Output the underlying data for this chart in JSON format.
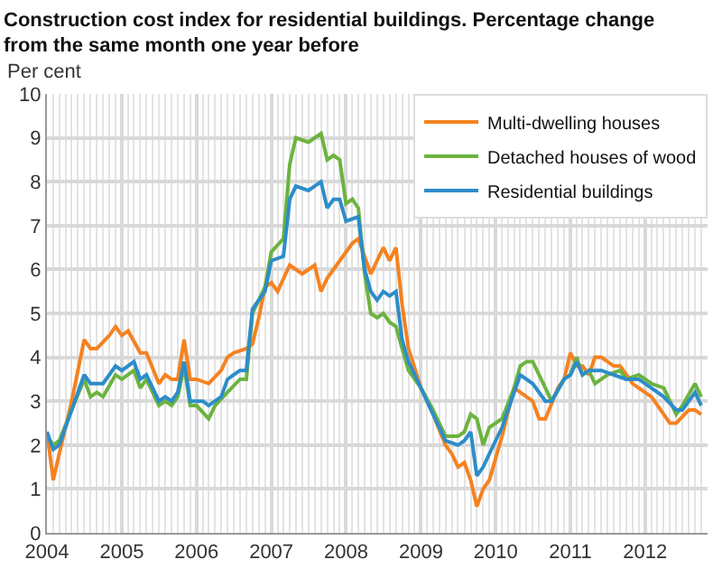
{
  "chart_data": {
    "type": "line",
    "title": "Construction cost index for residential buildings. Percentage change\nfrom the same month one year before",
    "ylabel": "Per cent",
    "xlim": [
      "2004-01",
      "2012-11"
    ],
    "xticks": [
      "2004",
      "2005",
      "2006",
      "2007",
      "2008",
      "2009",
      "2010",
      "2011",
      "2012"
    ],
    "ylim": [
      0,
      10
    ],
    "yticks": [
      0,
      1,
      2,
      3,
      4,
      5,
      6,
      7,
      8,
      9,
      10
    ],
    "grid": true,
    "legend": "top right",
    "marker": "none",
    "line_style": "solid",
    "series": [
      {
        "name": "Multi-dwelling houses",
        "color": "#f58220",
        "x": [
          "2004-01",
          "2004-02",
          "2004-03",
          "2004-05",
          "2004-07",
          "2004-08",
          "2004-09",
          "2004-11",
          "2004-12",
          "2005-01",
          "2005-02",
          "2005-04",
          "2005-05",
          "2005-07",
          "2005-08",
          "2005-09",
          "2005-10",
          "2005-11",
          "2005-12",
          "2006-01",
          "2006-03",
          "2006-05",
          "2006-06",
          "2006-07",
          "2006-09",
          "2006-10",
          "2006-11",
          "2006-12",
          "2007-01",
          "2007-02",
          "2007-04",
          "2007-06",
          "2007-08",
          "2007-09",
          "2007-10",
          "2008-02",
          "2008-03",
          "2008-05",
          "2008-07",
          "2008-08",
          "2008-09",
          "2008-10",
          "2008-11",
          "2009-01",
          "2009-03",
          "2009-05",
          "2009-06",
          "2009-07",
          "2009-08",
          "2009-09",
          "2009-10",
          "2009-11",
          "2009-12",
          "2010-02",
          "2010-04",
          "2010-05",
          "2010-07",
          "2010-08",
          "2010-09",
          "2010-11",
          "2010-12",
          "2011-01",
          "2011-02",
          "2011-03",
          "2011-04",
          "2011-05",
          "2011-06",
          "2011-08",
          "2011-09",
          "2011-11",
          "2011-12",
          "2012-02",
          "2012-04",
          "2012-05",
          "2012-06",
          "2012-08",
          "2012-09",
          "2012-10"
        ],
        "values": [
          2.3,
          1.2,
          1.8,
          3.0,
          4.4,
          4.2,
          4.2,
          4.5,
          4.7,
          4.5,
          4.6,
          4.1,
          4.1,
          3.4,
          3.6,
          3.5,
          3.5,
          4.4,
          3.5,
          3.5,
          3.4,
          3.7,
          4.0,
          4.1,
          4.2,
          4.3,
          4.9,
          5.6,
          5.7,
          5.5,
          6.1,
          5.9,
          6.1,
          5.5,
          5.8,
          6.6,
          6.7,
          5.9,
          6.5,
          6.2,
          6.5,
          5.2,
          4.2,
          3.3,
          2.7,
          2.0,
          1.8,
          1.5,
          1.6,
          1.2,
          0.6,
          1.0,
          1.2,
          2.2,
          3.3,
          3.2,
          3.0,
          2.6,
          2.6,
          3.3,
          3.5,
          4.1,
          3.8,
          3.8,
          3.6,
          4.0,
          4.0,
          3.8,
          3.8,
          3.4,
          3.3,
          3.1,
          2.7,
          2.5,
          2.5,
          2.8,
          2.8,
          2.7
        ]
      },
      {
        "name": "Detached houses of wood",
        "color": "#6cb33f",
        "x": [
          "2004-01",
          "2004-02",
          "2004-03",
          "2004-05",
          "2004-07",
          "2004-08",
          "2004-09",
          "2004-10",
          "2004-12",
          "2005-01",
          "2005-03",
          "2005-04",
          "2005-05",
          "2005-07",
          "2005-08",
          "2005-09",
          "2005-10",
          "2005-11",
          "2005-12",
          "2006-01",
          "2006-03",
          "2006-04",
          "2006-06",
          "2006-08",
          "2006-09",
          "2006-10",
          "2006-12",
          "2007-01",
          "2007-03",
          "2007-04",
          "2007-05",
          "2007-07",
          "2007-09",
          "2007-10",
          "2007-11",
          "2007-12",
          "2008-01",
          "2008-02",
          "2008-03",
          "2008-04",
          "2008-05",
          "2008-06",
          "2008-07",
          "2008-08",
          "2008-09",
          "2008-10",
          "2008-11",
          "2009-01",
          "2009-03",
          "2009-05",
          "2009-07",
          "2009-08",
          "2009-09",
          "2009-10",
          "2009-11",
          "2009-12",
          "2010-02",
          "2010-04",
          "2010-05",
          "2010-06",
          "2010-07",
          "2010-09",
          "2010-10",
          "2010-12",
          "2011-01",
          "2011-02",
          "2011-03",
          "2011-04",
          "2011-05",
          "2011-07",
          "2011-09",
          "2011-10",
          "2011-12",
          "2012-02",
          "2012-04",
          "2012-06",
          "2012-07",
          "2012-09",
          "2012-10"
        ],
        "values": [
          2.2,
          2.0,
          2.1,
          2.8,
          3.5,
          3.1,
          3.2,
          3.1,
          3.6,
          3.5,
          3.7,
          3.3,
          3.5,
          2.9,
          3.0,
          2.9,
          3.1,
          3.8,
          2.9,
          2.9,
          2.6,
          2.9,
          3.2,
          3.5,
          3.5,
          5.0,
          5.6,
          6.4,
          6.7,
          8.4,
          9.0,
          8.9,
          9.1,
          8.5,
          8.6,
          8.5,
          7.5,
          7.6,
          7.4,
          5.9,
          5.0,
          4.9,
          5.0,
          4.8,
          4.7,
          4.2,
          3.7,
          3.3,
          2.8,
          2.2,
          2.2,
          2.3,
          2.7,
          2.6,
          2.0,
          2.4,
          2.6,
          3.3,
          3.8,
          3.9,
          3.9,
          3.3,
          3.0,
          3.5,
          3.6,
          4.0,
          3.6,
          3.7,
          3.4,
          3.6,
          3.7,
          3.5,
          3.6,
          3.4,
          3.3,
          2.7,
          2.9,
          3.4,
          3.1
        ]
      },
      {
        "name": "Residential buildings",
        "color": "#2c8dc9",
        "x": [
          "2004-01",
          "2004-02",
          "2004-03",
          "2004-05",
          "2004-07",
          "2004-08",
          "2004-10",
          "2004-12",
          "2005-01",
          "2005-03",
          "2005-04",
          "2005-05",
          "2005-07",
          "2005-08",
          "2005-09",
          "2005-10",
          "2005-11",
          "2005-12",
          "2006-02",
          "2006-03",
          "2006-05",
          "2006-06",
          "2006-08",
          "2006-09",
          "2006-10",
          "2006-12",
          "2007-01",
          "2007-03",
          "2007-04",
          "2007-05",
          "2007-07",
          "2007-09",
          "2007-10",
          "2007-11",
          "2007-12",
          "2008-01",
          "2008-03",
          "2008-04",
          "2008-05",
          "2008-06",
          "2008-07",
          "2008-08",
          "2008-09",
          "2008-10",
          "2008-11",
          "2009-01",
          "2009-03",
          "2009-05",
          "2009-07",
          "2009-08",
          "2009-09",
          "2009-10",
          "2009-11",
          "2009-12",
          "2010-02",
          "2010-04",
          "2010-05",
          "2010-07",
          "2010-09",
          "2010-10",
          "2010-12",
          "2011-01",
          "2011-02",
          "2011-03",
          "2011-04",
          "2011-06",
          "2011-08",
          "2011-10",
          "2011-12",
          "2012-02",
          "2012-04",
          "2012-06",
          "2012-07",
          "2012-09",
          "2012-10"
        ],
        "values": [
          2.3,
          1.9,
          2.0,
          2.8,
          3.6,
          3.4,
          3.4,
          3.8,
          3.7,
          3.9,
          3.5,
          3.6,
          3.0,
          3.1,
          3.0,
          3.2,
          3.9,
          3.0,
          3.0,
          2.9,
          3.1,
          3.5,
          3.7,
          3.7,
          5.1,
          5.5,
          6.2,
          6.3,
          7.6,
          7.9,
          7.8,
          8.0,
          7.4,
          7.6,
          7.6,
          7.1,
          7.2,
          6.0,
          5.5,
          5.3,
          5.5,
          5.4,
          5.5,
          4.4,
          3.9,
          3.3,
          2.7,
          2.1,
          2.0,
          2.1,
          2.3,
          1.3,
          1.5,
          1.8,
          2.4,
          3.2,
          3.6,
          3.4,
          3.0,
          3.0,
          3.5,
          3.6,
          3.9,
          3.6,
          3.7,
          3.7,
          3.6,
          3.5,
          3.5,
          3.3,
          3.1,
          2.8,
          2.8,
          3.2,
          2.9
        ]
      }
    ]
  }
}
